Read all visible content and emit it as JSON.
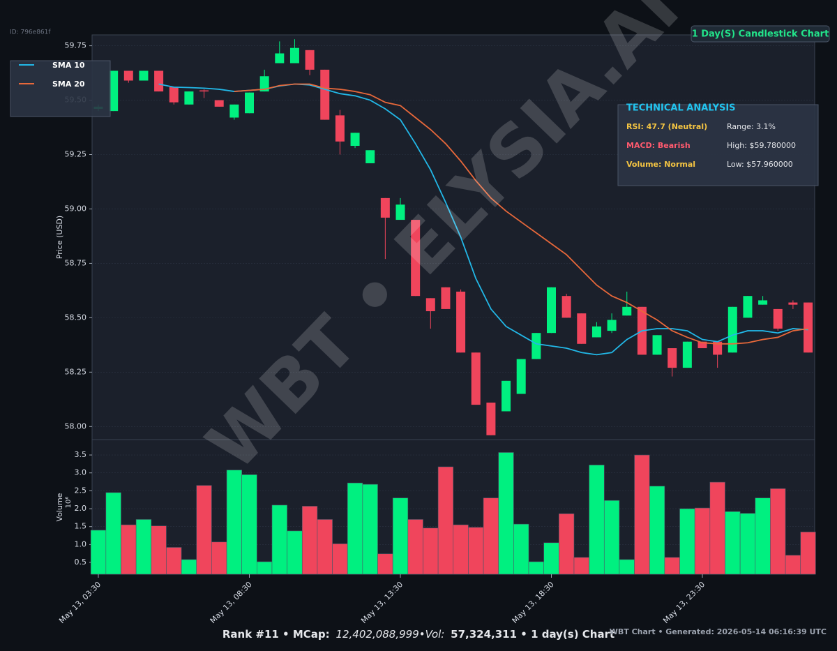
{
  "id_label": "ID: 796e861f",
  "badge": "1 Day(S) Candlestick Chart",
  "watermark": "WBT • ELYSIA.AI",
  "technical_analysis": {
    "title": "TECHNICAL ANALYSIS",
    "rows": [
      [
        "RSI: 47.7 (Neutral)",
        "Range: 3.1%"
      ],
      [
        "MACD: Bearish",
        "High: $59.780000"
      ],
      [
        "Volume: Normal",
        "Low: $57.960000"
      ]
    ],
    "colors": [
      "#f5c542",
      "#ff5a6e",
      "#f5c542"
    ]
  },
  "footer": {
    "parts": [
      "Rank #11 • MCap:",
      "12,402,088,999•Vol:",
      "57,324,311 • 1 day(s) Chart"
    ],
    "right": "WBT Chart • Generated: 2026-05-14 06:16:39 UTC"
  },
  "chart_data": [
    {
      "type": "candlestick",
      "ylabel": "Price (USD)",
      "up_color": "#00f080",
      "down_color": "#f0455c",
      "grid": true,
      "legend": "upper left",
      "ylim": [
        57.94,
        59.8
      ],
      "yticks": [
        {
          "value": 58.0,
          "label": "58.00"
        },
        {
          "value": 58.25,
          "label": "58.25"
        },
        {
          "value": 58.5,
          "label": "58.50"
        },
        {
          "value": 58.75,
          "label": "58.75"
        },
        {
          "value": 59.0,
          "label": "59.00"
        },
        {
          "value": 59.25,
          "label": "59.25"
        },
        {
          "value": 59.5,
          "label": "59.50"
        },
        {
          "value": 59.75,
          "label": "59.75"
        }
      ],
      "open": [
        59.46,
        59.45,
        59.635,
        59.59,
        59.635,
        59.56,
        59.48,
        59.545,
        59.5,
        59.42,
        59.44,
        59.54,
        59.67,
        59.67,
        59.73,
        59.64,
        59.43,
        59.29,
        59.21,
        59.05,
        58.95,
        58.95,
        58.59,
        58.64,
        58.62,
        58.34,
        58.11,
        58.07,
        58.15,
        58.31,
        58.43,
        58.6,
        58.52,
        58.41,
        58.44,
        58.51,
        58.55,
        58.33,
        58.36,
        58.27,
        58.39,
        58.39,
        58.34,
        58.5,
        58.56,
        58.54,
        58.57,
        58.57
      ],
      "high": [
        59.48,
        59.635,
        59.635,
        59.635,
        59.635,
        59.56,
        59.54,
        59.55,
        59.5,
        59.48,
        59.535,
        59.64,
        59.77,
        59.78,
        59.73,
        59.64,
        59.455,
        59.35,
        59.27,
        59.05,
        59.05,
        58.95,
        58.59,
        58.64,
        58.63,
        58.34,
        58.11,
        58.21,
        58.31,
        58.43,
        58.64,
        58.61,
        58.52,
        58.48,
        58.52,
        58.62,
        58.55,
        58.42,
        58.36,
        58.39,
        58.39,
        58.39,
        58.55,
        58.6,
        58.6,
        58.54,
        58.58,
        58.57
      ],
      "low": [
        59.45,
        59.45,
        59.58,
        59.59,
        59.54,
        59.48,
        59.48,
        59.51,
        59.47,
        59.41,
        59.44,
        59.54,
        59.67,
        59.67,
        59.615,
        59.41,
        59.25,
        59.28,
        59.21,
        58.77,
        58.95,
        58.6,
        58.45,
        58.54,
        58.34,
        58.1,
        57.96,
        58.07,
        58.15,
        58.31,
        58.43,
        58.5,
        58.38,
        58.41,
        58.43,
        58.51,
        58.33,
        58.33,
        58.23,
        58.27,
        58.36,
        58.27,
        58.34,
        58.5,
        58.56,
        58.44,
        58.54,
        58.34
      ],
      "close": [
        59.47,
        59.635,
        59.59,
        59.635,
        59.54,
        59.49,
        59.54,
        59.54,
        59.47,
        59.48,
        59.535,
        59.61,
        59.715,
        59.74,
        59.64,
        59.41,
        59.31,
        59.35,
        59.27,
        58.96,
        59.02,
        58.6,
        58.53,
        58.54,
        58.34,
        58.1,
        57.96,
        58.21,
        58.31,
        58.43,
        58.64,
        58.5,
        58.38,
        58.46,
        58.49,
        58.55,
        58.33,
        58.42,
        58.27,
        58.39,
        58.36,
        58.33,
        58.55,
        58.6,
        58.58,
        58.45,
        58.56,
        58.34
      ],
      "series": [
        {
          "name": "SMA 10",
          "color": "#22b8e8",
          "values": [
            null,
            null,
            null,
            null,
            59.574,
            59.56,
            59.558,
            59.555,
            59.55,
            59.54,
            59.545,
            59.55,
            59.565,
            59.574,
            59.57,
            59.55,
            59.53,
            59.52,
            59.5,
            59.46,
            59.41,
            59.3,
            59.18,
            59.03,
            58.87,
            58.68,
            58.54,
            58.46,
            58.42,
            58.38,
            58.37,
            58.36,
            58.34,
            58.33,
            58.34,
            58.4,
            58.44,
            58.45,
            58.45,
            58.44,
            58.4,
            58.39,
            58.42,
            58.44,
            58.44,
            58.43,
            58.45,
            58.445
          ]
        },
        {
          "name": "SMA 20",
          "color": "#e8683a",
          "values": [
            null,
            null,
            null,
            null,
            null,
            null,
            null,
            null,
            null,
            59.54,
            59.545,
            59.55,
            59.567,
            59.574,
            59.574,
            59.555,
            59.55,
            59.54,
            59.525,
            59.49,
            59.475,
            59.42,
            59.365,
            59.3,
            59.22,
            59.13,
            59.05,
            58.99,
            58.94,
            58.89,
            58.84,
            58.79,
            58.72,
            58.65,
            58.6,
            58.57,
            58.53,
            58.49,
            58.44,
            58.41,
            58.385,
            58.38,
            58.38,
            58.385,
            58.4,
            58.41,
            58.44,
            58.45
          ]
        }
      ]
    },
    {
      "type": "bar",
      "ylabel": "Volume",
      "offset_label": "10⁶",
      "grid": true,
      "ylim": [
        0.17,
        3.93
      ],
      "yticks": [
        0.5,
        {
          "value": 1.0,
          "label": "1.0"
        },
        1.5,
        {
          "value": 2.0,
          "label": "2.0"
        },
        2.5,
        {
          "value": 3.0,
          "label": "3.0"
        },
        3.5
      ],
      "categories": [
        "May 13, 03:30",
        null,
        null,
        null,
        null,
        null,
        null,
        null,
        null,
        null,
        "May 13, 08:30",
        null,
        null,
        null,
        null,
        null,
        null,
        null,
        null,
        null,
        "May 13, 13:30",
        null,
        null,
        null,
        null,
        null,
        null,
        null,
        null,
        null,
        "May 13, 18:30",
        null,
        null,
        null,
        null,
        null,
        null,
        null,
        null,
        null,
        "May 13, 23:30",
        null,
        null,
        null,
        null,
        null,
        null,
        null
      ],
      "values": [
        1.4,
        2.45,
        1.55,
        1.7,
        1.52,
        0.92,
        0.58,
        2.65,
        1.07,
        3.08,
        2.95,
        0.52,
        2.1,
        1.38,
        2.07,
        1.7,
        1.02,
        2.72,
        2.68,
        0.74,
        2.3,
        1.7,
        1.46,
        3.17,
        1.55,
        1.48,
        2.3,
        3.57,
        1.57,
        0.52,
        1.05,
        1.86,
        0.64,
        3.22,
        2.23,
        0.58,
        3.5,
        2.63,
        0.64,
        2.0,
        2.02,
        2.74,
        1.92,
        1.87,
        2.3,
        2.56,
        0.7,
        1.35
      ]
    }
  ]
}
